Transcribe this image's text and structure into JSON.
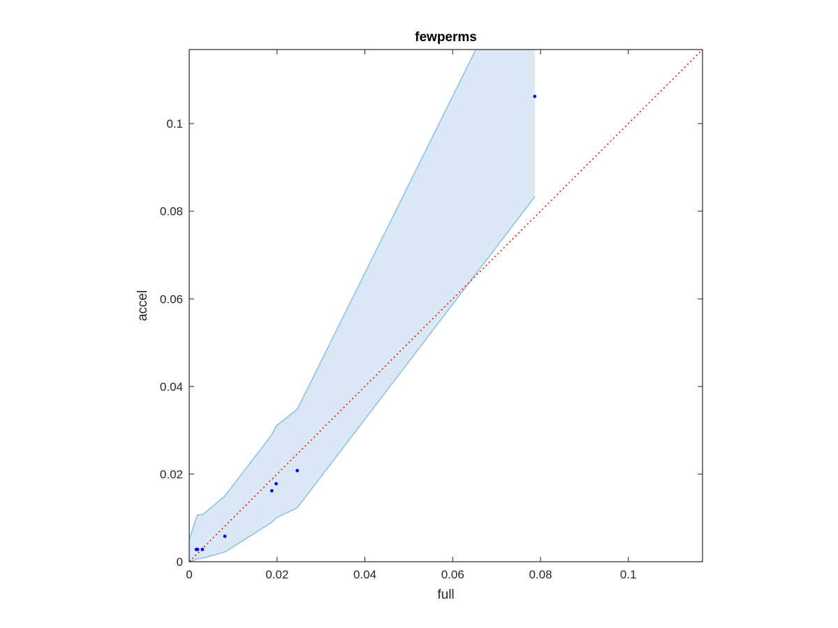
{
  "chart_data": {
    "type": "scatter",
    "title": "fewperms",
    "xlabel": "full",
    "ylabel": "accel",
    "xlim": [
      0,
      0.1169
    ],
    "ylim": [
      0,
      0.1169
    ],
    "xticks": [
      0,
      0.02,
      0.04,
      0.06,
      0.08,
      0.1
    ],
    "xtick_labels": [
      "0",
      "0.02",
      "0.04",
      "0.06",
      "0.08",
      "0.1"
    ],
    "yticks": [
      0,
      0.02,
      0.04,
      0.06,
      0.08,
      0.1
    ],
    "ytick_labels": [
      "0",
      "0.02",
      "0.04",
      "0.06",
      "0.08",
      "0.1"
    ],
    "grid": false,
    "points": {
      "color": "#0000ff",
      "x": [
        0.0,
        0.0016,
        0.0019,
        0.003,
        0.0081,
        0.0188,
        0.0198,
        0.0246,
        0.0787
      ],
      "y": [
        0.0,
        0.0028,
        0.0028,
        0.0028,
        0.0058,
        0.0162,
        0.0178,
        0.0208,
        0.1062
      ]
    },
    "band": {
      "fill": "#d9e8f4",
      "edge": "#89bfe0",
      "x": [
        0.0,
        0.0016,
        0.0019,
        0.003,
        0.0081,
        0.0188,
        0.0198,
        0.0246,
        0.0787
      ],
      "upper": [
        0.005,
        0.01,
        0.0107,
        0.0107,
        0.015,
        0.029,
        0.031,
        0.0348,
        0.144
      ],
      "lower": [
        0.0,
        0.0005,
        0.0007,
        0.0008,
        0.0022,
        0.009,
        0.01,
        0.0123,
        0.0833
      ]
    },
    "reference_line": {
      "style": "dotted",
      "color": "#ff0000",
      "x": [
        0,
        0.1169
      ],
      "y": [
        0,
        0.1169
      ]
    }
  }
}
